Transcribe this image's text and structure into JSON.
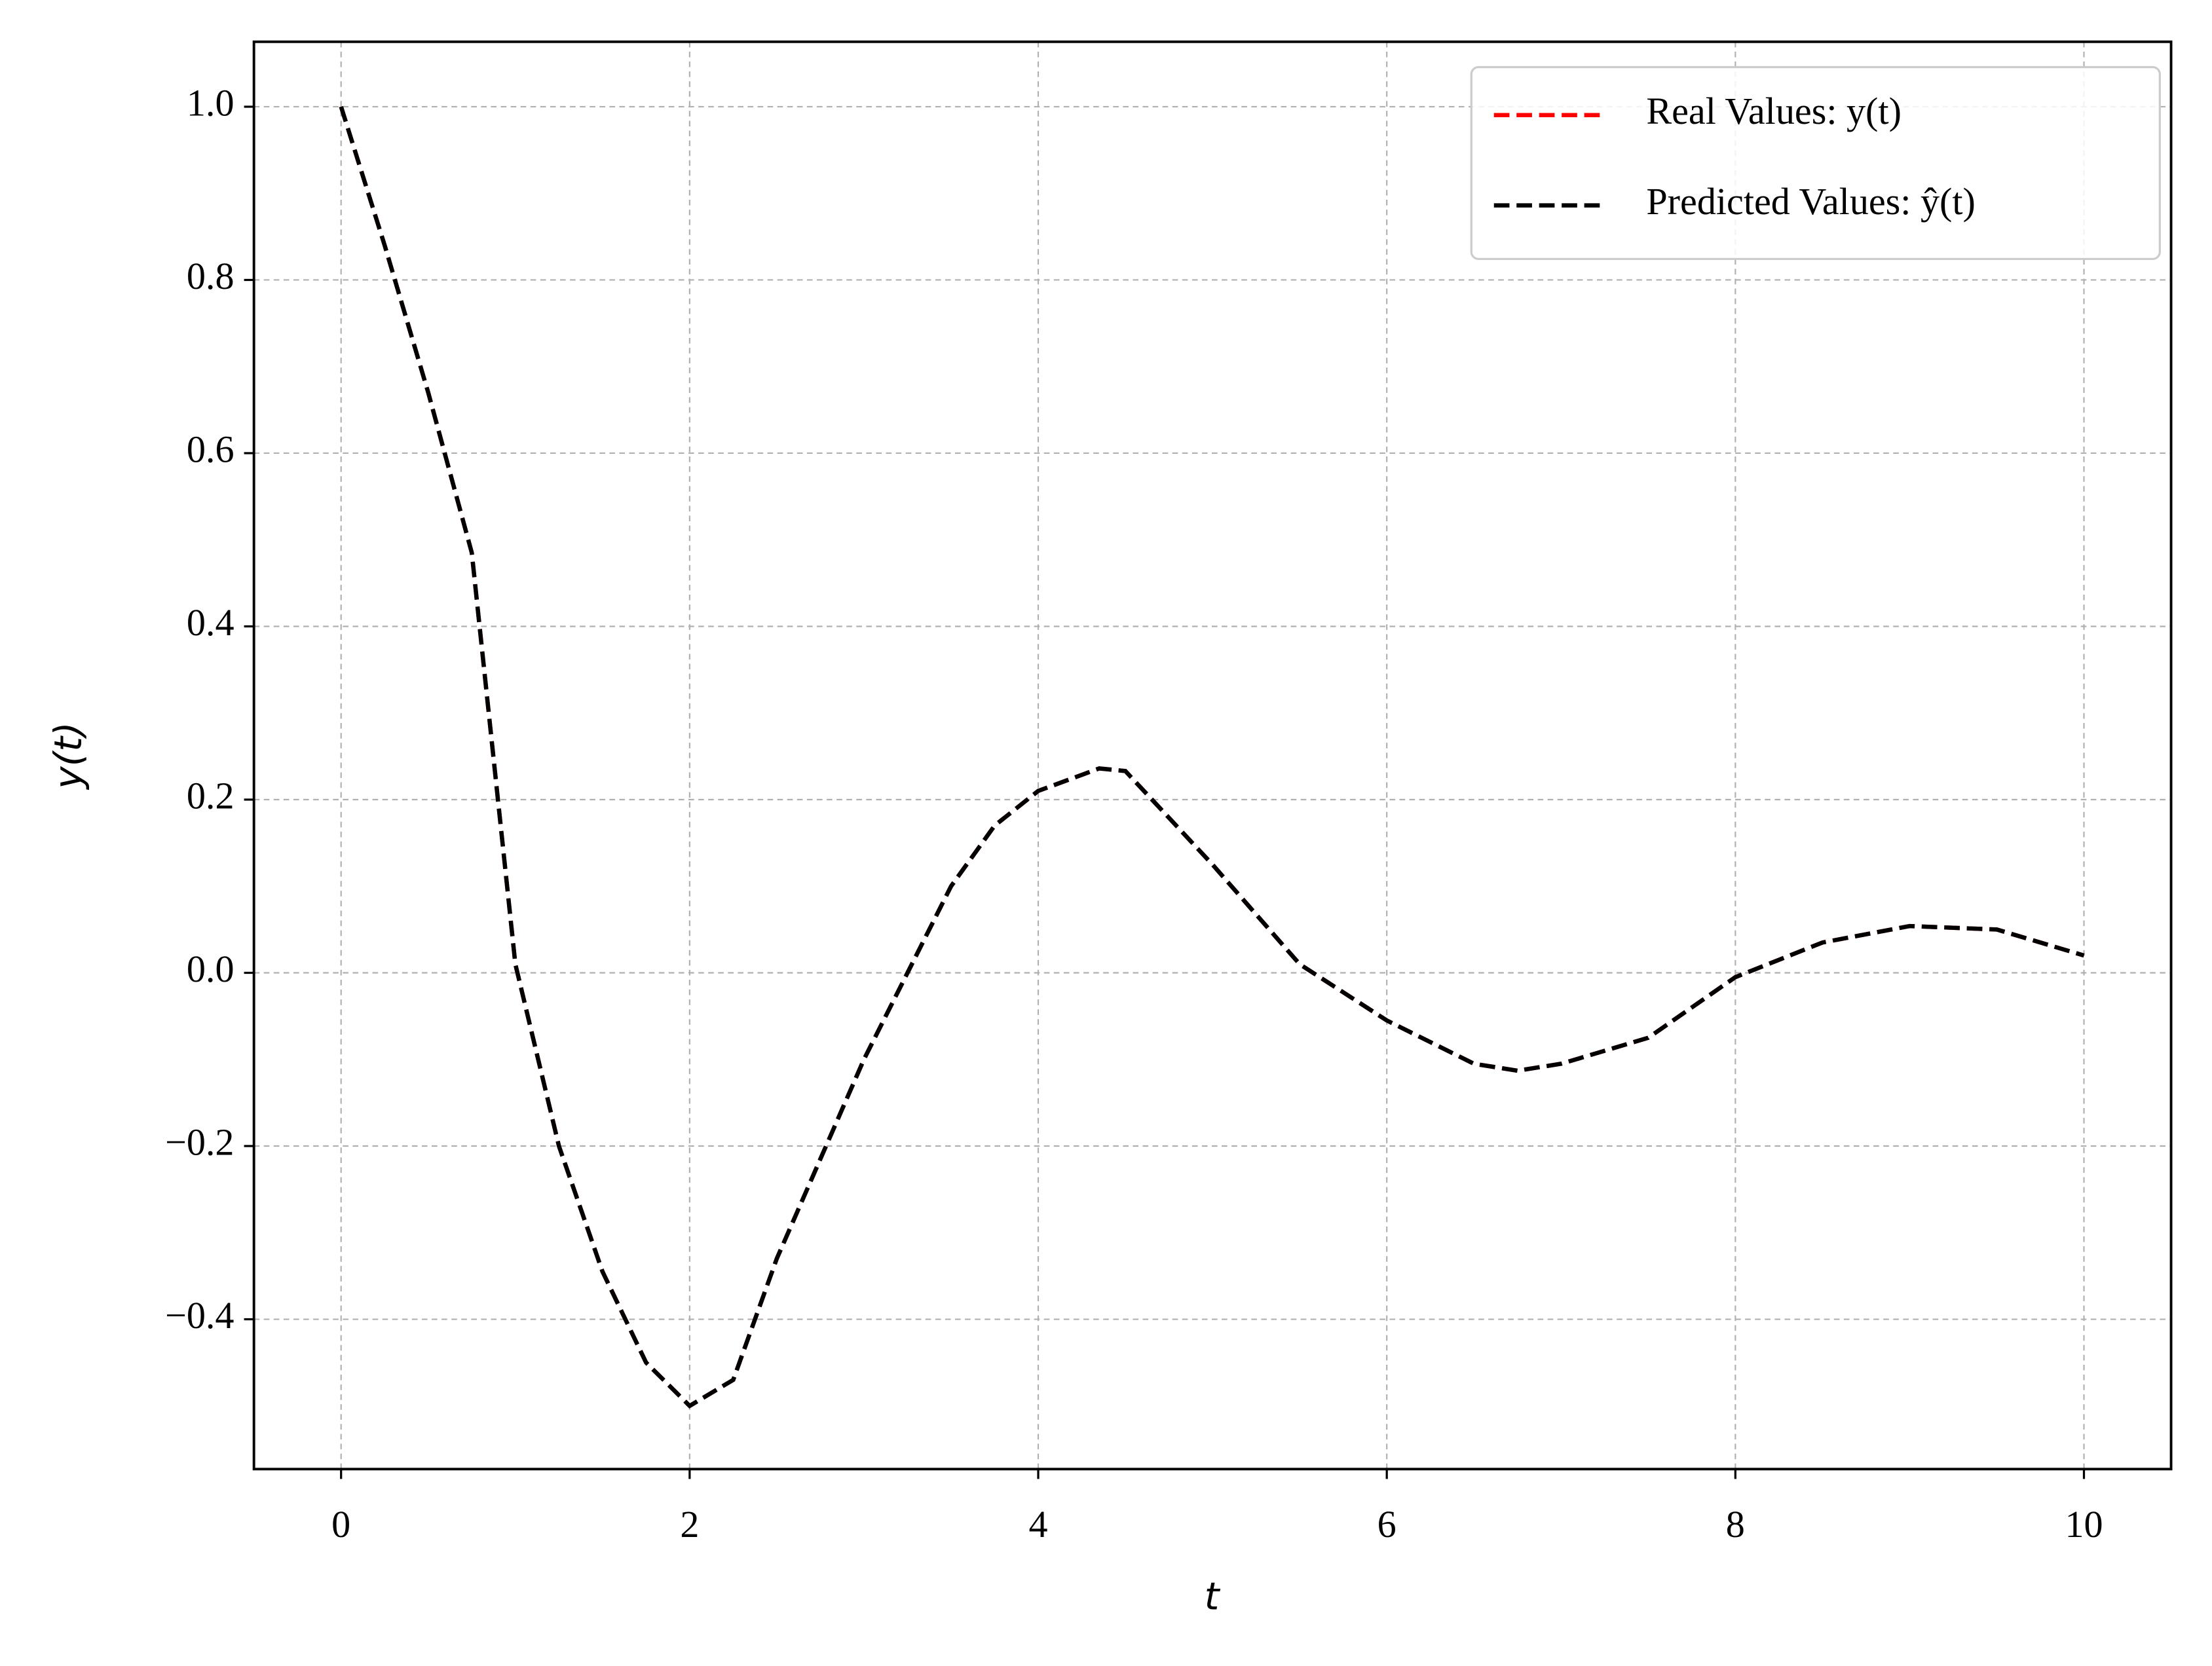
{
  "chart_data": {
    "type": "line",
    "xlabel": "t",
    "ylabel": "y(t)",
    "x": [
      0,
      0.25,
      0.5,
      0.75,
      1.0,
      1.25,
      1.5,
      1.75,
      2.0,
      2.25,
      2.5,
      2.75,
      3.0,
      3.25,
      3.5,
      3.75,
      4.0,
      4.35,
      4.5,
      5.0,
      5.5,
      6.0,
      6.5,
      6.75,
      7.0,
      7.5,
      8.0,
      8.5,
      9.0,
      9.5,
      10.0
    ],
    "series": [
      {
        "name": "Real Values: y(t)",
        "color": "#ff0000",
        "values": [
          1.0,
          0.84,
          0.67,
          0.485,
          0.01,
          -0.2,
          -0.345,
          -0.45,
          -0.5,
          -0.47,
          -0.33,
          -0.215,
          -0.1,
          0.0,
          0.1,
          0.17,
          0.21,
          0.236,
          0.233,
          0.125,
          0.01,
          -0.055,
          -0.105,
          -0.113,
          -0.105,
          -0.075,
          -0.005,
          0.035,
          0.054,
          0.05,
          0.02
        ]
      },
      {
        "name": "Predicted Values: ŷ(t)",
        "color": "#000000",
        "values": [
          1.0,
          0.84,
          0.67,
          0.485,
          0.01,
          -0.2,
          -0.345,
          -0.45,
          -0.5,
          -0.47,
          -0.33,
          -0.215,
          -0.1,
          0.0,
          0.1,
          0.17,
          0.21,
          0.236,
          0.233,
          0.125,
          0.01,
          -0.055,
          -0.105,
          -0.113,
          -0.105,
          -0.075,
          -0.005,
          0.035,
          0.054,
          0.05,
          0.02
        ]
      }
    ],
    "xlim": [
      -0.5,
      10.5
    ],
    "ylim": [
      -0.573,
      1.075
    ],
    "xticks": [
      0,
      2,
      4,
      6,
      8,
      10
    ],
    "yticks": [
      {
        "value": -0.4,
        "label": "−0.4"
      },
      {
        "value": -0.2,
        "label": "−0.2"
      },
      {
        "value": 0,
        "label": "0.0"
      },
      0.2,
      0.4,
      0.6,
      0.8,
      {
        "value": 1,
        "label": "1.0"
      }
    ],
    "grid": true,
    "legend": "upper right"
  }
}
